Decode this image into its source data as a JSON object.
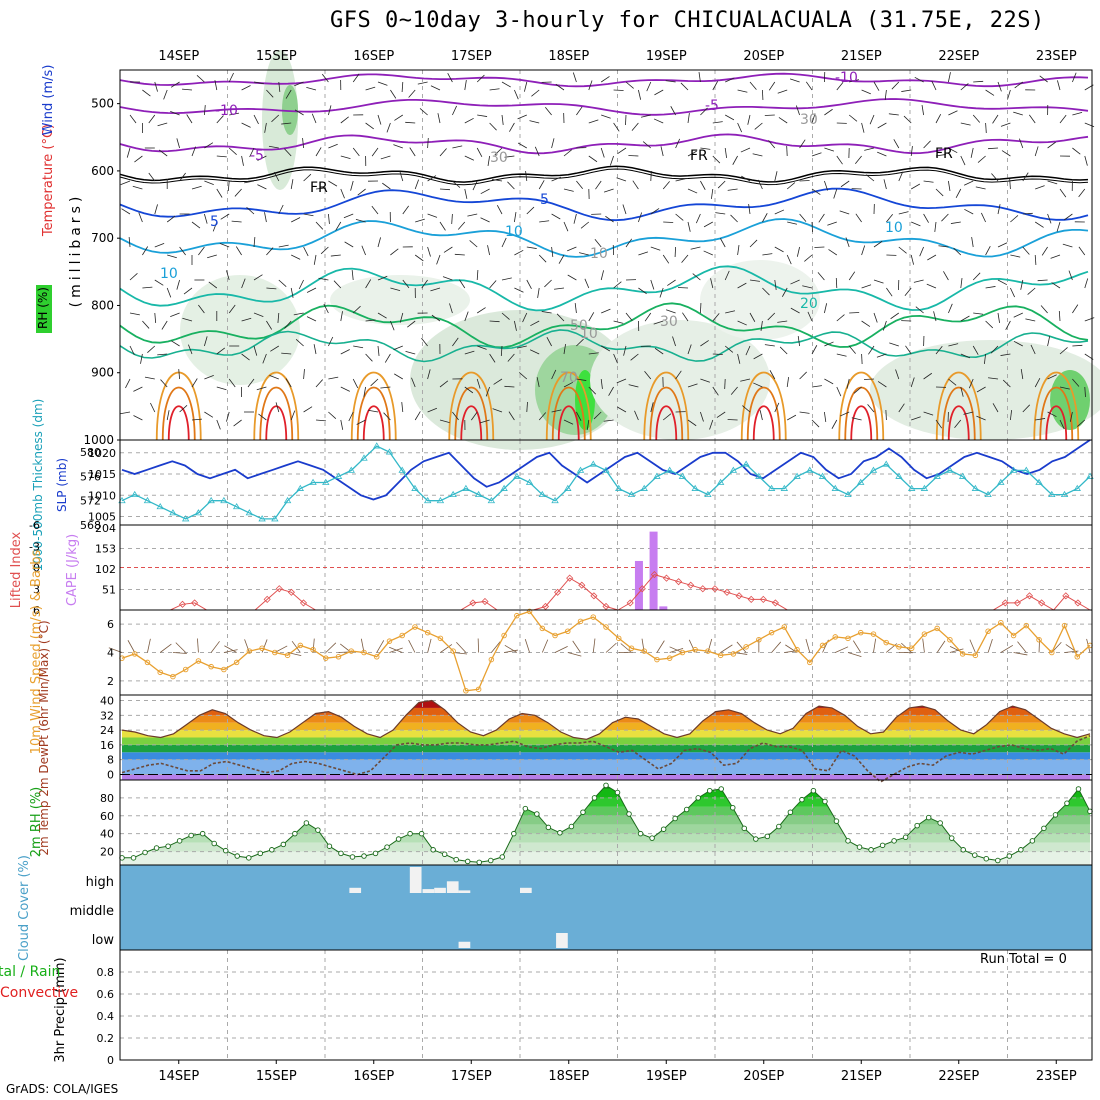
{
  "title": "GFS 0~10day 3-hourly for CHICUALACUALA (31.75E, 22S)",
  "footer": "GrADS: COLA/IGES",
  "colors": {
    "purple": "#8e1fb8",
    "black": "#000000",
    "blue": "#1446d6",
    "cyan": "#1aa0d8",
    "teal": "#18b8a8",
    "green": "#18b060",
    "orange": "#e89a2a",
    "red": "#e0202a",
    "cloud": "#6aaed6",
    "slp": "#1a3ccc",
    "thick": "#33b8c8",
    "cape": "#c77df0",
    "li": "#e05050",
    "wind": "#e8a030",
    "rh": "#18c018"
  },
  "chart_data": [
    {
      "panel": "cross-section",
      "type": "heatmap",
      "title": "GFS 0~10day 3-hourly for CHICUALACUALA (31.75E, 22S)",
      "ylabel_parts": [
        "RH (%)",
        "Temperature (°C)",
        "Wind (m/s)"
      ],
      "ylabel_sub": "(millibars)",
      "x_ticks_top": [
        "14SEP",
        "15SEP",
        "16SEP",
        "17SEP",
        "18SEP",
        "19SEP",
        "20SEP",
        "21SEP",
        "22SEP",
        "23SEP"
      ],
      "y_ticks": [
        "500",
        "600",
        "700",
        "800",
        "900",
        "1000"
      ],
      "ylim": [
        1000,
        450
      ],
      "contour_labels": [
        "-10",
        "-10",
        "-5",
        "-5",
        "FR",
        "FR",
        "FR",
        "5",
        "5",
        "10",
        "10",
        "10",
        "20",
        "30",
        "30",
        "30",
        "10",
        "10",
        "70",
        "50",
        "70"
      ]
    },
    {
      "panel": "thickness-slp",
      "type": "line",
      "ylabel_left": "1000-500mb Thickness (dm)",
      "ylabel_right": "SLP (mb)",
      "y_ticks_left": [
        "568",
        "572",
        "576",
        "580"
      ],
      "y_ticks_right": [
        "1005",
        "1010",
        "1015",
        "1020"
      ],
      "series": [
        {
          "name": "SLP (mb)",
          "values": [
            1016,
            1015,
            1016,
            1017,
            1018,
            1017,
            1015,
            1014,
            1015,
            1016,
            1014,
            1015,
            1016,
            1017,
            1018,
            1017,
            1016,
            1014,
            1012,
            1010,
            1009,
            1010,
            1013,
            1016,
            1018,
            1019,
            1020,
            1017,
            1014,
            1012,
            1013,
            1015,
            1017,
            1019,
            1020,
            1017,
            1015,
            1013,
            1015,
            1017,
            1019,
            1020,
            1018,
            1016,
            1015,
            1017,
            1019,
            1020,
            1020,
            1018,
            1015,
            1014,
            1016,
            1018,
            1020,
            1019,
            1016,
            1014,
            1015,
            1018,
            1019,
            1021,
            1019,
            1016,
            1014,
            1015,
            1017,
            1019,
            1020,
            1019,
            1018,
            1016,
            1015,
            1016,
            1018,
            1019,
            1021,
            1023
          ]
        },
        {
          "name": "1000-500mb Thickness (dm)",
          "values": [
            572,
            573,
            572,
            571,
            570,
            569,
            570,
            572,
            572,
            571,
            570,
            569,
            569,
            572,
            574,
            575,
            575,
            576,
            577,
            579,
            581,
            580,
            577,
            574,
            572,
            572,
            573,
            574,
            573,
            572,
            574,
            576,
            575,
            573,
            572,
            574,
            577,
            578,
            577,
            574,
            573,
            574,
            576,
            577,
            576,
            574,
            573,
            575,
            577,
            578,
            576,
            574,
            574,
            576,
            577,
            576,
            574,
            573,
            575,
            577,
            578,
            576,
            574,
            574,
            576,
            577,
            576,
            574,
            573,
            575,
            577,
            577,
            575,
            573,
            573,
            574,
            576
          ]
        }
      ],
      "ylim_left": [
        568,
        582
      ],
      "ylim_right": [
        1003,
        1023
      ]
    },
    {
      "panel": "cape-li",
      "type": "bar",
      "ylabel_left": "Lifted Index",
      "ylabel_right": "CAPE (J/kg)",
      "y_ticks_left": [
        "6",
        "3",
        "0",
        "-3",
        "-6"
      ],
      "y_ticks_right": [
        "51",
        "102",
        "153",
        "204"
      ],
      "cape_bars": [
        {
          "x": 5.22,
          "value": 122
        },
        {
          "x": 5.37,
          "value": 195
        },
        {
          "x": 5.47,
          "value": 9
        }
      ],
      "lifted_index": [
        6,
        6,
        6,
        6,
        6,
        5.2,
        5.0,
        6,
        6,
        6,
        6,
        6,
        4.5,
        3.0,
        3.5,
        5.0,
        6,
        6,
        6,
        6,
        6,
        6,
        6,
        6,
        6,
        6,
        6,
        6,
        6,
        5.0,
        4.8,
        6,
        6,
        6,
        6,
        5.5,
        3.5,
        1.5,
        2.5,
        4.0,
        5.5,
        6,
        5.0,
        3.0,
        1.0,
        1.5,
        2.0,
        2.5,
        3.0,
        3.0,
        3.5,
        4.0,
        4.5,
        4.5,
        5.0,
        6,
        6,
        6,
        6,
        6,
        6,
        6,
        6,
        6,
        6,
        6,
        6,
        6,
        6,
        6,
        6,
        6,
        6,
        5.0,
        5.0,
        4.0,
        5.0,
        6,
        4.0,
        5.0,
        6
      ],
      "ylim_cape": [
        0,
        204
      ],
      "ylim_li": [
        6,
        -6
      ]
    },
    {
      "panel": "wind10m",
      "type": "line",
      "ylabel": "10m Wind Speed (m/s) & Barbs",
      "y_ticks": [
        "2",
        "4",
        "6"
      ],
      "values": [
        3.6,
        3.9,
        3.3,
        2.6,
        2.3,
        2.8,
        3.4,
        3.0,
        2.8,
        3.3,
        4.1,
        4.3,
        4.0,
        3.8,
        4.5,
        4.2,
        3.6,
        3.7,
        4.1,
        4.0,
        3.7,
        4.8,
        5.2,
        5.8,
        5.4,
        5.0,
        4.1,
        1.3,
        1.4,
        3.5,
        5.2,
        6.6,
        6.9,
        5.7,
        5.2,
        5.5,
        6.2,
        6.5,
        5.8,
        5.0,
        4.3,
        4.1,
        3.5,
        3.6,
        4.0,
        4.2,
        4.1,
        3.8,
        3.9,
        4.4,
        4.9,
        5.4,
        5.8,
        4.2,
        3.3,
        4.5,
        5.1,
        5.0,
        5.4,
        5.3,
        4.7,
        4.4,
        4.3,
        5.3,
        5.7,
        4.9,
        3.9,
        3.8,
        5.5,
        6.1,
        5.2,
        5.9,
        4.9,
        4.0,
        5.9,
        3.7,
        4.5
      ],
      "ylim": [
        1,
        7
      ]
    },
    {
      "panel": "temp",
      "type": "area",
      "ylabel": "2m Temp 2m DewPt (6hr Min/Max) (°C)",
      "y_ticks": [
        "0",
        "8",
        "16",
        "24",
        "32",
        "40"
      ],
      "temp": [
        24,
        23,
        21,
        20,
        22,
        27,
        32,
        35,
        33,
        28,
        24,
        21,
        20,
        23,
        28,
        33,
        34,
        31,
        26,
        22,
        20,
        24,
        32,
        39,
        40,
        35,
        28,
        23,
        21,
        24,
        30,
        33,
        32,
        28,
        23,
        20,
        19,
        22,
        28,
        31,
        30,
        26,
        22,
        20,
        22,
        29,
        34,
        35,
        33,
        28,
        24,
        22,
        25,
        33,
        37,
        36,
        32,
        26,
        22,
        23,
        31,
        36,
        37,
        35,
        29,
        24,
        22,
        27,
        34,
        37,
        35,
        30,
        25,
        22,
        20,
        22
      ],
      "dewpt": [
        1,
        3,
        5,
        6,
        4,
        2,
        2,
        6,
        7,
        5,
        3,
        1,
        2,
        6,
        7,
        6,
        4,
        2,
        0,
        2,
        9,
        16,
        17,
        16,
        16,
        17,
        17,
        16,
        16,
        17,
        18,
        15,
        14,
        16,
        17,
        17,
        18,
        15,
        12,
        13,
        8,
        3,
        6,
        13,
        14,
        12,
        5,
        6,
        14,
        17,
        15,
        15,
        13,
        3,
        2,
        13,
        10,
        2,
        -4,
        0,
        4,
        6,
        5,
        10,
        12,
        11,
        13,
        15,
        16,
        14,
        13,
        14,
        11,
        18,
        21
      ],
      "ylim": [
        -3,
        43
      ]
    },
    {
      "panel": "rh2m",
      "type": "area",
      "ylabel": "2m RH (%)",
      "y_ticks": [
        "20",
        "40",
        "60",
        "80"
      ],
      "values": [
        13,
        13,
        19,
        24,
        26,
        32,
        38,
        40,
        29,
        21,
        15,
        13,
        18,
        22,
        28,
        40,
        52,
        44,
        26,
        18,
        14,
        15,
        18,
        25,
        34,
        40,
        40,
        22,
        17,
        11,
        9,
        8,
        10,
        14,
        40,
        68,
        62,
        47,
        41,
        48,
        64,
        80,
        94,
        86,
        62,
        40,
        35,
        45,
        57,
        67,
        80,
        88,
        90,
        69,
        46,
        34,
        37,
        48,
        64,
        78,
        88,
        76,
        54,
        32,
        25,
        22,
        27,
        32,
        36,
        49,
        58,
        52,
        35,
        22,
        16,
        12,
        10,
        15,
        22,
        32,
        46,
        61,
        74,
        90,
        65
      ],
      "ylim": [
        5,
        100
      ]
    },
    {
      "panel": "cloud",
      "type": "heatmap",
      "ylabel": "Cloud Cover (%)",
      "y_ticks": [
        "high",
        "middle",
        "low"
      ],
      "gaps": [
        {
          "layer": "high",
          "x": 2.25,
          "w": 0.12,
          "frac": 0.2
        },
        {
          "layer": "high",
          "x": 2.87,
          "w": 0.12,
          "frac": 1.0
        },
        {
          "layer": "high",
          "x": 3.0,
          "w": 0.12,
          "frac": 0.15
        },
        {
          "layer": "high",
          "x": 3.12,
          "w": 0.12,
          "frac": 0.2
        },
        {
          "layer": "high",
          "x": 3.25,
          "w": 0.12,
          "frac": 0.45
        },
        {
          "layer": "high",
          "x": 3.37,
          "w": 0.12,
          "frac": 0.1
        },
        {
          "layer": "high",
          "x": 4.0,
          "w": 0.12,
          "frac": 0.2
        },
        {
          "layer": "low",
          "x": 3.37,
          "w": 0.12,
          "frac": 0.25
        },
        {
          "layer": "low",
          "x": 4.37,
          "w": 0.12,
          "frac": 0.6
        }
      ]
    },
    {
      "panel": "precip",
      "type": "bar",
      "ylabel": "3hr Precip (mm)",
      "legend_left": [
        "tal / Rain",
        "Convective"
      ],
      "run_total": "Run Total = 0",
      "y_ticks": [
        "0",
        "0.2",
        "0.4",
        "0.6",
        "0.8"
      ],
      "values": [],
      "ylim": [
        0,
        1.0
      ],
      "x_ticks_bottom": [
        "14SEP",
        "15SEP",
        "16SEP",
        "17SEP",
        "18SEP",
        "19SEP",
        "20SEP",
        "21SEP",
        "22SEP",
        "23SEP"
      ]
    }
  ]
}
